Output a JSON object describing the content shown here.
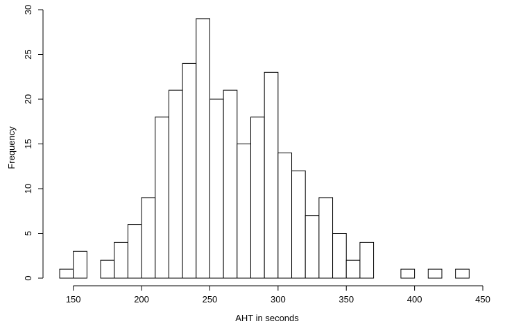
{
  "chart_data": {
    "type": "bar",
    "subtype": "histogram",
    "title": "",
    "xlabel": "AHT in seconds",
    "ylabel": "Frequency",
    "bin_width": 10,
    "xlim": [
      140,
      450
    ],
    "ylim": [
      0,
      30
    ],
    "x_ticks": [
      150,
      200,
      250,
      300,
      350,
      400,
      450
    ],
    "y_ticks": [
      0,
      5,
      10,
      15,
      20,
      25,
      30
    ],
    "grid": false,
    "legend": "none",
    "bar_fill": "#ffffff",
    "bar_stroke": "#000000",
    "bins": [
      {
        "start": 140,
        "end": 150,
        "count": 1
      },
      {
        "start": 150,
        "end": 160,
        "count": 3
      },
      {
        "start": 160,
        "end": 170,
        "count": 0
      },
      {
        "start": 170,
        "end": 180,
        "count": 2
      },
      {
        "start": 180,
        "end": 190,
        "count": 4
      },
      {
        "start": 190,
        "end": 200,
        "count": 6
      },
      {
        "start": 200,
        "end": 210,
        "count": 9
      },
      {
        "start": 210,
        "end": 220,
        "count": 18
      },
      {
        "start": 220,
        "end": 230,
        "count": 21
      },
      {
        "start": 230,
        "end": 240,
        "count": 24
      },
      {
        "start": 240,
        "end": 250,
        "count": 29
      },
      {
        "start": 250,
        "end": 260,
        "count": 20
      },
      {
        "start": 260,
        "end": 270,
        "count": 21
      },
      {
        "start": 270,
        "end": 280,
        "count": 15
      },
      {
        "start": 280,
        "end": 290,
        "count": 18
      },
      {
        "start": 290,
        "end": 300,
        "count": 23
      },
      {
        "start": 300,
        "end": 310,
        "count": 14
      },
      {
        "start": 310,
        "end": 320,
        "count": 12
      },
      {
        "start": 320,
        "end": 330,
        "count": 7
      },
      {
        "start": 330,
        "end": 340,
        "count": 9
      },
      {
        "start": 340,
        "end": 350,
        "count": 5
      },
      {
        "start": 350,
        "end": 360,
        "count": 2
      },
      {
        "start": 360,
        "end": 370,
        "count": 4
      },
      {
        "start": 370,
        "end": 380,
        "count": 0
      },
      {
        "start": 380,
        "end": 390,
        "count": 0
      },
      {
        "start": 390,
        "end": 400,
        "count": 1
      },
      {
        "start": 400,
        "end": 410,
        "count": 0
      },
      {
        "start": 410,
        "end": 420,
        "count": 1
      },
      {
        "start": 420,
        "end": 430,
        "count": 0
      },
      {
        "start": 430,
        "end": 440,
        "count": 1
      }
    ]
  }
}
